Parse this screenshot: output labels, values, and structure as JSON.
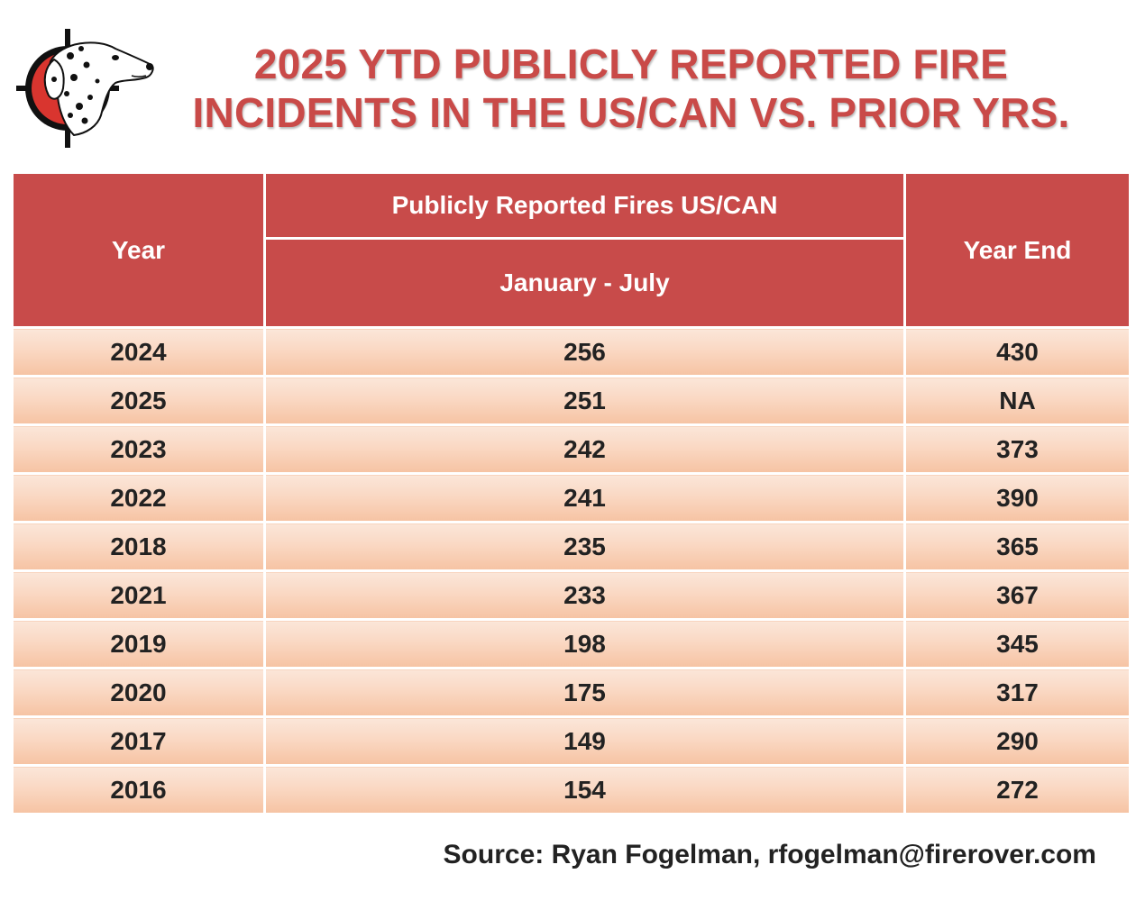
{
  "title": {
    "line1": "2025 YTD PUBLICLY REPORTED FIRE",
    "line2": "INCIDENTS IN THE US/CAN VS. PRIOR YRS."
  },
  "logo": {
    "icon": "dalmatian-crosshair-logo"
  },
  "colors": {
    "header_bg": "#c84b4a",
    "title": "#c94a48",
    "row_light": "#fbe6d9",
    "row_dark": "#f6c3a3"
  },
  "table": {
    "col_year": "Year",
    "col_group": "Publicly Reported Fires US/CAN",
    "col_group_sub": "January - July",
    "col_year_end": "Year End",
    "rows": [
      {
        "year": "2024",
        "jan_jul": "256",
        "year_end": "430"
      },
      {
        "year": "2025",
        "jan_jul": "251",
        "year_end": "NA"
      },
      {
        "year": "2023",
        "jan_jul": "242",
        "year_end": "373"
      },
      {
        "year": "2022",
        "jan_jul": "241",
        "year_end": "390"
      },
      {
        "year": "2018",
        "jan_jul": "235",
        "year_end": "365"
      },
      {
        "year": "2021",
        "jan_jul": "233",
        "year_end": "367"
      },
      {
        "year": "2019",
        "jan_jul": "198",
        "year_end": "345"
      },
      {
        "year": "2020",
        "jan_jul": "175",
        "year_end": "317"
      },
      {
        "year": "2017",
        "jan_jul": "149",
        "year_end": "290"
      },
      {
        "year": "2016",
        "jan_jul": "154",
        "year_end": "272"
      }
    ]
  },
  "source": "Source: Ryan Fogelman, rfogelman@firerover.com"
}
